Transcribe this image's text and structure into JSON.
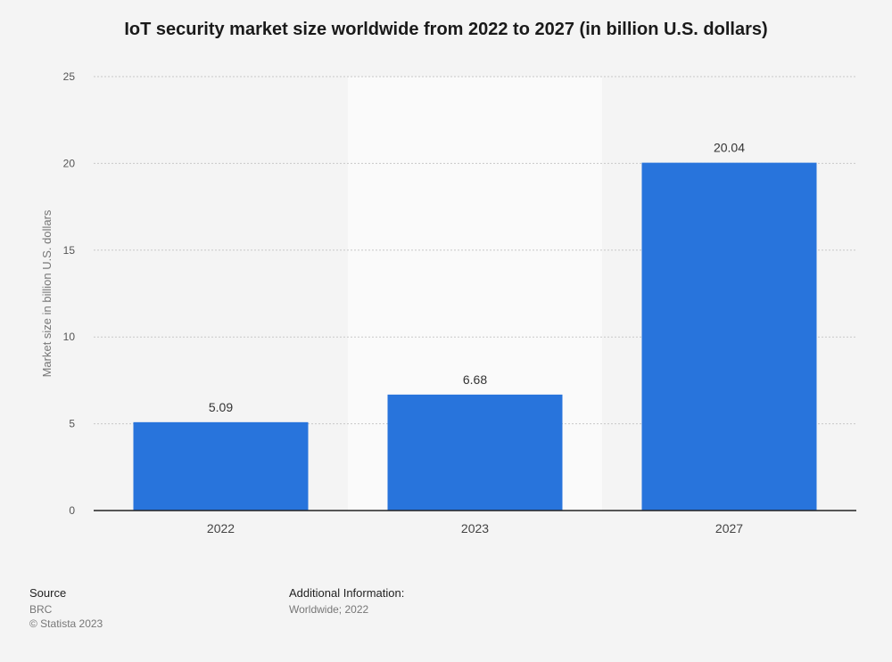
{
  "title": "IoT security market size worldwide from 2022 to 2027 (in billion U.S. dollars)",
  "chart_data": {
    "type": "bar",
    "categories": [
      "2022",
      "2023",
      "2027"
    ],
    "values": [
      5.09,
      6.68,
      20.04
    ],
    "value_labels": [
      "5.09",
      "6.68",
      "20.04"
    ],
    "ylabel": "Market size in billion U.S. dollars",
    "xlabel": "",
    "ylim": [
      0,
      25
    ],
    "yticks": [
      0,
      5,
      10,
      15,
      20,
      25
    ],
    "ytick_labels": [
      "0",
      "5",
      "10",
      "15",
      "20",
      "25"
    ],
    "grid": true,
    "highlighted_category": "2023"
  },
  "colors": {
    "bar": "#2874dc",
    "grid": "#c8c8c8",
    "axis": "#222222",
    "tick_text": "#555555",
    "highlight_band": "#fafafa"
  },
  "footer": {
    "source_heading": "Source",
    "source_lines": [
      "BRC",
      "© Statista 2023"
    ],
    "info_heading": "Additional Information:",
    "info_lines": [
      "Worldwide; 2022"
    ]
  }
}
